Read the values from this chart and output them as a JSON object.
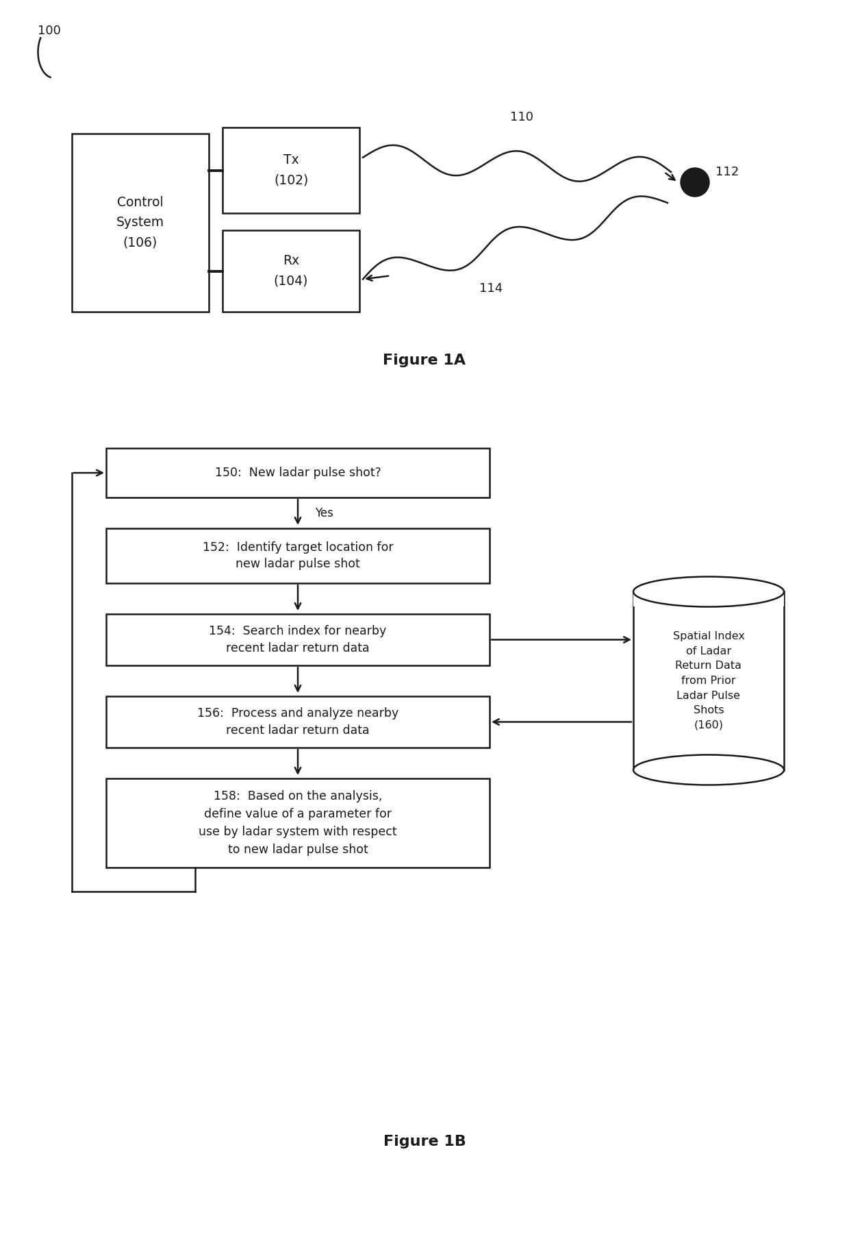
{
  "fig_width": 12.4,
  "fig_height": 18.11,
  "bg_color": "#ffffff",
  "line_color": "#1a1a1a",
  "text_color": "#1a1a1a",
  "fig1a_label": "Figure 1A",
  "fig1b_label": "Figure 1B",
  "label_100": "100",
  "label_110": "110",
  "label_112": "112",
  "label_114": "114",
  "control_system_text": "Control\nSystem\n(106)",
  "tx_text": "Tx\n(102)",
  "rx_text": "Rx\n(104)",
  "box150_text": "150:  New ladar pulse shot?",
  "box152_text": "152:  Identify target location for\nnew ladar pulse shot",
  "box154_text": "154:  Search index for nearby\nrecent ladar return data",
  "box156_text": "156:  Process and analyze nearby\nrecent ladar return data",
  "box158_text": "158:  Based on the analysis,\ndefine value of a parameter for\nuse by ladar system with respect\nto new ladar pulse shot",
  "cylinder_text": "Spatial Index\nof Ladar\nReturn Data\nfrom Prior\nLadar Pulse\nShots\n(160)",
  "yes_label": "Yes"
}
